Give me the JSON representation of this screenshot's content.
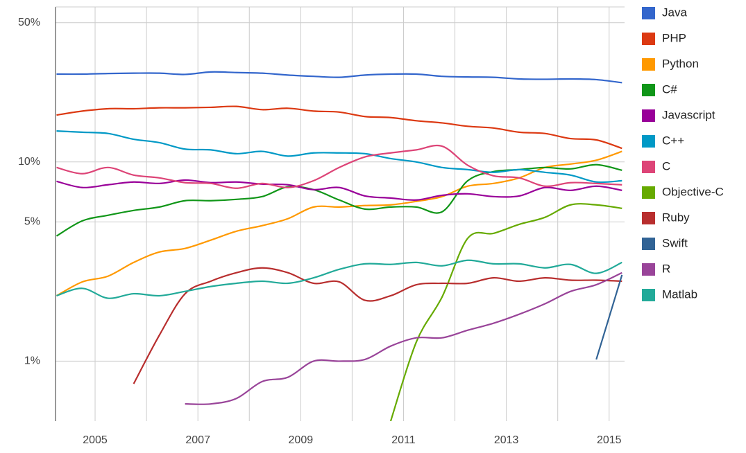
{
  "chart_data": {
    "type": "line",
    "log_scale": true,
    "grid": true,
    "legend": "right",
    "xlim": [
      2004.23,
      2015.3
    ],
    "xticks": [
      2005,
      2007,
      2009,
      2011,
      2013,
      2015
    ],
    "x_minor_gridlines": [
      2006,
      2008,
      2010,
      2012,
      2014
    ],
    "ylim": [
      0.5,
      60
    ],
    "yticks": [
      {
        "value": 1,
        "label": "1%"
      },
      {
        "value": 5,
        "label": "5%"
      },
      {
        "value": 10,
        "label": "10%"
      },
      {
        "value": 50,
        "label": "50%"
      }
    ],
    "x": [
      2004.25,
      2004.75,
      2005.25,
      2005.75,
      2006.25,
      2006.75,
      2007.25,
      2007.75,
      2008.25,
      2008.75,
      2009.25,
      2009.75,
      2010.25,
      2010.75,
      2011.25,
      2011.75,
      2012.25,
      2012.75,
      2013.25,
      2013.75,
      2014.25,
      2014.75,
      2015.25
    ],
    "series": [
      {
        "name": "Java",
        "color": "#3366cc",
        "values": [
          27.6,
          27.6,
          27.8,
          27.9,
          27.9,
          27.5,
          28.3,
          28.1,
          27.9,
          27.3,
          26.9,
          26.6,
          27.3,
          27.6,
          27.6,
          26.9,
          26.7,
          26.6,
          26.1,
          26.0,
          26.1,
          25.9,
          25.0
        ]
      },
      {
        "name": "PHP",
        "color": "#dc3912",
        "values": [
          17.2,
          18.0,
          18.5,
          18.5,
          18.7,
          18.7,
          18.8,
          19.0,
          18.3,
          18.6,
          18.0,
          17.8,
          16.9,
          16.7,
          16.1,
          15.7,
          15.1,
          14.8,
          14.1,
          13.9,
          13.1,
          12.9,
          11.7
        ]
      },
      {
        "name": "Python",
        "color": "#ff9900",
        "values": [
          2.13,
          2.5,
          2.67,
          3.13,
          3.53,
          3.68,
          4.05,
          4.49,
          4.79,
          5.19,
          5.94,
          5.94,
          6.04,
          6.09,
          6.34,
          6.7,
          7.56,
          7.8,
          8.32,
          9.38,
          9.76,
          10.2,
          11.3
        ]
      },
      {
        "name": "C#",
        "color": "#109618",
        "values": [
          4.25,
          5.06,
          5.4,
          5.71,
          5.94,
          6.39,
          6.39,
          6.49,
          6.7,
          7.5,
          7.26,
          6.44,
          5.8,
          5.94,
          5.94,
          5.62,
          8.05,
          8.94,
          9.15,
          9.38,
          9.23,
          9.69,
          9.08
        ]
      },
      {
        "name": "Javascript",
        "color": "#990099",
        "values": [
          7.99,
          7.44,
          7.68,
          7.93,
          7.8,
          8.11,
          7.87,
          7.93,
          7.74,
          7.68,
          7.26,
          7.44,
          6.75,
          6.59,
          6.44,
          6.8,
          6.92,
          6.7,
          6.75,
          7.44,
          7.2,
          7.56,
          7.2
        ]
      },
      {
        "name": "C++",
        "color": "#0099c6",
        "values": [
          14.3,
          14.1,
          13.9,
          13.0,
          12.5,
          11.6,
          11.5,
          11.0,
          11.3,
          10.7,
          11.1,
          11.1,
          11.0,
          10.4,
          10.0,
          9.38,
          9.15,
          8.87,
          9.15,
          8.87,
          8.59,
          7.93,
          8.05
        ]
      },
      {
        "name": "C",
        "color": "#dd4477",
        "values": [
          9.38,
          8.73,
          9.38,
          8.59,
          8.32,
          7.87,
          7.8,
          7.38,
          7.8,
          7.44,
          8.05,
          9.38,
          10.6,
          11.1,
          11.5,
          12.0,
          9.62,
          8.52,
          8.32,
          7.56,
          7.87,
          7.8,
          7.68
        ]
      },
      {
        "name": "Objective-C",
        "color": "#66aa00",
        "values": [
          null,
          null,
          null,
          null,
          null,
          null,
          null,
          null,
          null,
          null,
          null,
          null,
          null,
          0.5,
          1.25,
          2.1,
          4.14,
          4.38,
          4.86,
          5.27,
          6.09,
          6.09,
          5.85
        ]
      },
      {
        "name": "Ruby",
        "color": "#b82e2e",
        "values": [
          null,
          null,
          null,
          0.77,
          1.35,
          2.18,
          2.52,
          2.78,
          2.94,
          2.78,
          2.46,
          2.5,
          2.02,
          2.13,
          2.42,
          2.46,
          2.46,
          2.62,
          2.52,
          2.62,
          2.55,
          2.55,
          2.52
        ]
      },
      {
        "name": "Swift",
        "color": "#316395",
        "values": [
          null,
          null,
          null,
          null,
          null,
          null,
          null,
          null,
          null,
          null,
          null,
          null,
          null,
          null,
          null,
          null,
          null,
          null,
          null,
          null,
          null,
          1.02,
          2.71
        ]
      },
      {
        "name": "R",
        "color": "#994499",
        "values": [
          null,
          null,
          null,
          null,
          null,
          0.61,
          0.61,
          0.65,
          0.79,
          0.83,
          1.0,
          1.0,
          1.02,
          1.19,
          1.31,
          1.31,
          1.43,
          1.55,
          1.72,
          1.94,
          2.24,
          2.42,
          2.78
        ]
      },
      {
        "name": "Matlab",
        "color": "#22aa99",
        "values": [
          2.13,
          2.32,
          2.07,
          2.18,
          2.13,
          2.24,
          2.37,
          2.46,
          2.52,
          2.46,
          2.62,
          2.89,
          3.08,
          3.06,
          3.13,
          3.01,
          3.21,
          3.08,
          3.08,
          2.94,
          3.06,
          2.76,
          3.13
        ]
      }
    ]
  }
}
